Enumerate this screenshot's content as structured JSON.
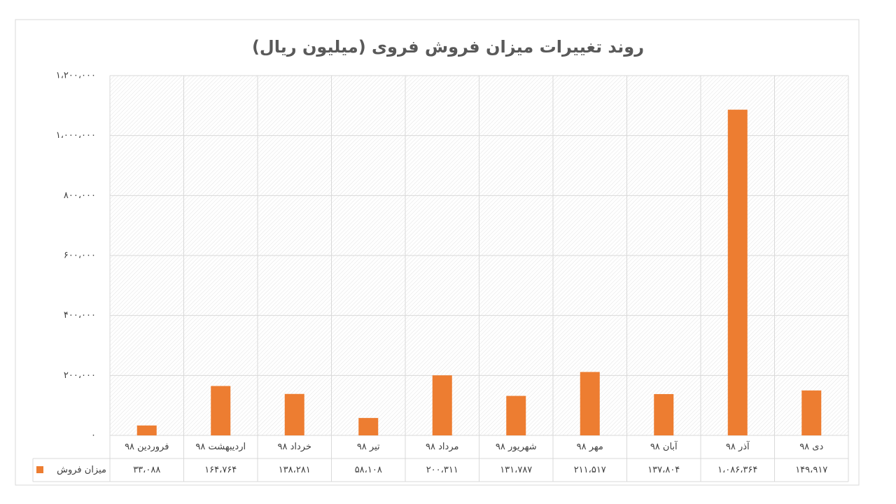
{
  "chart_data": {
    "type": "bar",
    "title": "روند تغییرات میزان فروش فروی (میلیون ریال)",
    "categories": [
      "فروردین ۹۸",
      "اردیبهشت ۹۸",
      "خرداد ۹۸",
      "تیر ۹۸",
      "مرداد ۹۸",
      "شهریور ۹۸",
      "مهر ۹۸",
      "آبان ۹۸",
      "آذر ۹۸",
      "دی ۹۸"
    ],
    "series": [
      {
        "name": "میزان فروش",
        "color": "#ed7d31",
        "values": [
          33088,
          164764,
          138281,
          58108,
          200311,
          131787,
          211517,
          137804,
          1086364,
          149917
        ],
        "value_labels": [
          "۳۳،۰۸۸",
          "۱۶۴،۷۶۴",
          "۱۳۸،۲۸۱",
          "۵۸،۱۰۸",
          "۲۰۰،۳۱۱",
          "۱۳۱،۷۸۷",
          "۲۱۱،۵۱۷",
          "۱۳۷،۸۰۴",
          "۱،۰۸۶،۳۶۴",
          "۱۴۹،۹۱۷"
        ]
      }
    ],
    "ylim": [
      0,
      1200000
    ],
    "yticks": [
      {
        "value": 0,
        "label": "۰"
      },
      {
        "value": 200000,
        "label": "۲۰۰،۰۰۰"
      },
      {
        "value": 400000,
        "label": "۴۰۰،۰۰۰"
      },
      {
        "value": 600000,
        "label": "۶۰۰،۰۰۰"
      },
      {
        "value": 800000,
        "label": "۸۰۰،۰۰۰"
      },
      {
        "value": 1000000,
        "label": "۱،۰۰۰،۰۰۰"
      },
      {
        "value": 1200000,
        "label": "۱،۲۰۰،۰۰۰"
      }
    ],
    "grid": true
  }
}
